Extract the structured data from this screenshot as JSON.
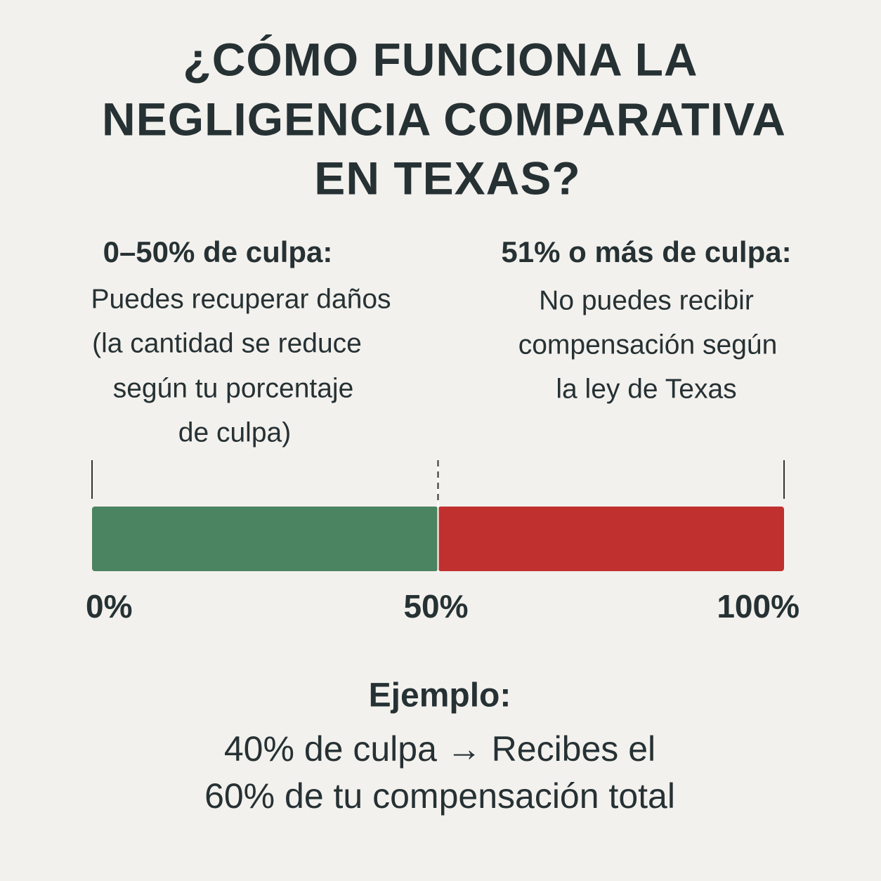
{
  "title": [
    "¿CÓMO FUNCIONA LA",
    "NEGLIGENCIA COMPARATIVA",
    "EN TEXAS?"
  ],
  "left": {
    "heading": "0–50% de culpa:",
    "lines": [
      "Puedes recuperar daños",
      "(la cantidad se reduce",
      "según tu porcentaje",
      "de culpa)"
    ]
  },
  "right": {
    "heading": "51% o más de culpa:",
    "lines": [
      "No puedes recibir",
      "compensación según",
      "la ley de Texas"
    ]
  },
  "chart_data": {
    "type": "stacked-bar",
    "xlim": [
      0,
      100
    ],
    "xticks": [
      {
        "value": 0,
        "label": "0%"
      },
      {
        "value": 50,
        "label": "50%"
      },
      {
        "value": 100,
        "label": "100%"
      }
    ],
    "series": [
      {
        "color": "#4a8460",
        "values": [
          50
        ]
      },
      {
        "color": "#c0302f",
        "values": [
          50
        ]
      }
    ]
  },
  "example": {
    "heading": "Ejemplo:",
    "lines": [
      "40% de culpa → Recibes el",
      "60% de tu compensación total"
    ]
  }
}
